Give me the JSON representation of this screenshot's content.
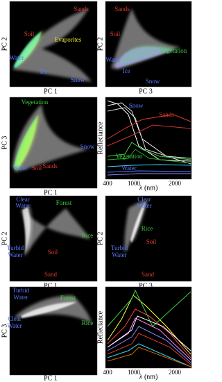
{
  "panels": [
    {
      "kind": "density",
      "x_label": "PC 1",
      "y_label": "PC 2",
      "labels": [
        "Sands",
        "Soil",
        "Evaporites",
        "Water",
        "Ice",
        "Snow"
      ]
    },
    {
      "kind": "density",
      "x_label": "PC 3",
      "y_label": "PC 2",
      "labels": [
        "Sands",
        "Soil",
        "Vegetation",
        "Water",
        "Ice",
        "Snow"
      ]
    },
    {
      "kind": "density",
      "x_label": "PC 1",
      "y_label": "PC 3",
      "labels": [
        "Vegetation",
        "Snow",
        "Water",
        "Soil",
        "Sands"
      ]
    },
    {
      "kind": "spectrum",
      "x_label": "λ (nm)",
      "y_label": "Reflectance",
      "x_ticks": [
        "400",
        "1000",
        "2000"
      ],
      "labels": [
        "Snow",
        "Sands",
        "Vegetation",
        "Water"
      ]
    },
    {
      "kind": "density",
      "x_label": "PC 1",
      "y_label": "PC 2",
      "labels": [
        "Clear",
        "Water",
        "Forest",
        "Rice",
        "Turbid",
        "Water",
        "Soil",
        "Sand"
      ]
    },
    {
      "kind": "density",
      "x_label": "PC 3",
      "y_label": "PC 2",
      "labels": [
        "Clear",
        "Water",
        "Rice",
        "Soil",
        "Turbid",
        "Water",
        "Sand"
      ]
    },
    {
      "kind": "density",
      "x_label": "PC 1",
      "y_label": "PC 3",
      "labels": [
        "Turbid",
        "Water",
        "Forest",
        "Rice",
        "Clear",
        "Water"
      ]
    },
    {
      "kind": "spectrum",
      "x_label": "λ (nm)",
      "y_label": "Reflectance",
      "x_ticks": [
        "400",
        "1000",
        "2000"
      ],
      "labels": []
    }
  ]
}
